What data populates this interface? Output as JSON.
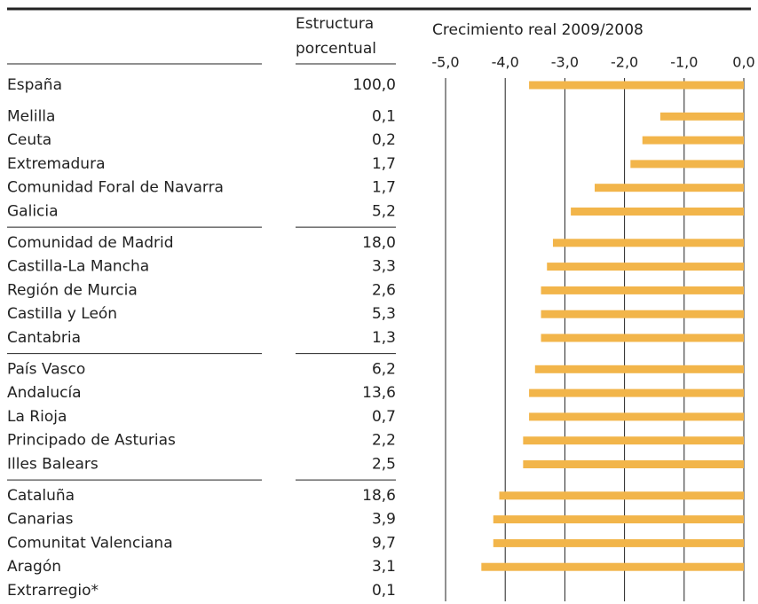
{
  "chart_data": {
    "type": "bar",
    "orientation": "horizontal",
    "title": "Crecimiento real 2009/2008",
    "categories": [
      "España",
      "Melilla",
      "Ceuta",
      "Extremadura",
      "Comunidad Foral de Navarra",
      "Galicia",
      "Comunidad de Madrid",
      "Castilla-La Mancha",
      "Región de Murcia",
      "Castilla y León",
      "Cantabria",
      "País Vasco",
      "Andalucía",
      "La Rioja",
      "Principado de Asturias",
      "Illes Balears",
      "Cataluña",
      "Canarias",
      "Comunitat Valenciana",
      "Aragón",
      "Extrarregio*"
    ],
    "values": [
      -3.6,
      -1.4,
      -1.7,
      -1.9,
      -2.5,
      -2.9,
      -3.2,
      -3.3,
      -3.4,
      -3.4,
      -3.4,
      -3.5,
      -3.6,
      -3.6,
      -3.7,
      -3.7,
      -4.1,
      -4.2,
      -4.2,
      -4.4,
      null
    ],
    "color": "#f2b54a",
    "xlim": [
      -5,
      0
    ],
    "xticks": [
      {
        "value": -5,
        "label": "-5,0"
      },
      {
        "value": -4,
        "label": "-4,0"
      },
      {
        "value": -3,
        "label": "-3,0"
      },
      {
        "value": -2,
        "label": "-2,0"
      },
      {
        "value": -1,
        "label": "-1,0"
      },
      {
        "value": 0,
        "label": "0,0"
      }
    ],
    "grid": true,
    "table_column": {
      "header": [
        "Estructura",
        "porcentual"
      ],
      "values": [
        "100,0",
        "0,1",
        "0,2",
        "1,7",
        "1,7",
        "5,2",
        "18,0",
        "3,3",
        "2,6",
        "5,3",
        "1,3",
        "6,2",
        "13,6",
        "0,7",
        "2,2",
        "2,5",
        "18,6",
        "3,9",
        "9,7",
        "3,1",
        "0,1"
      ]
    }
  }
}
